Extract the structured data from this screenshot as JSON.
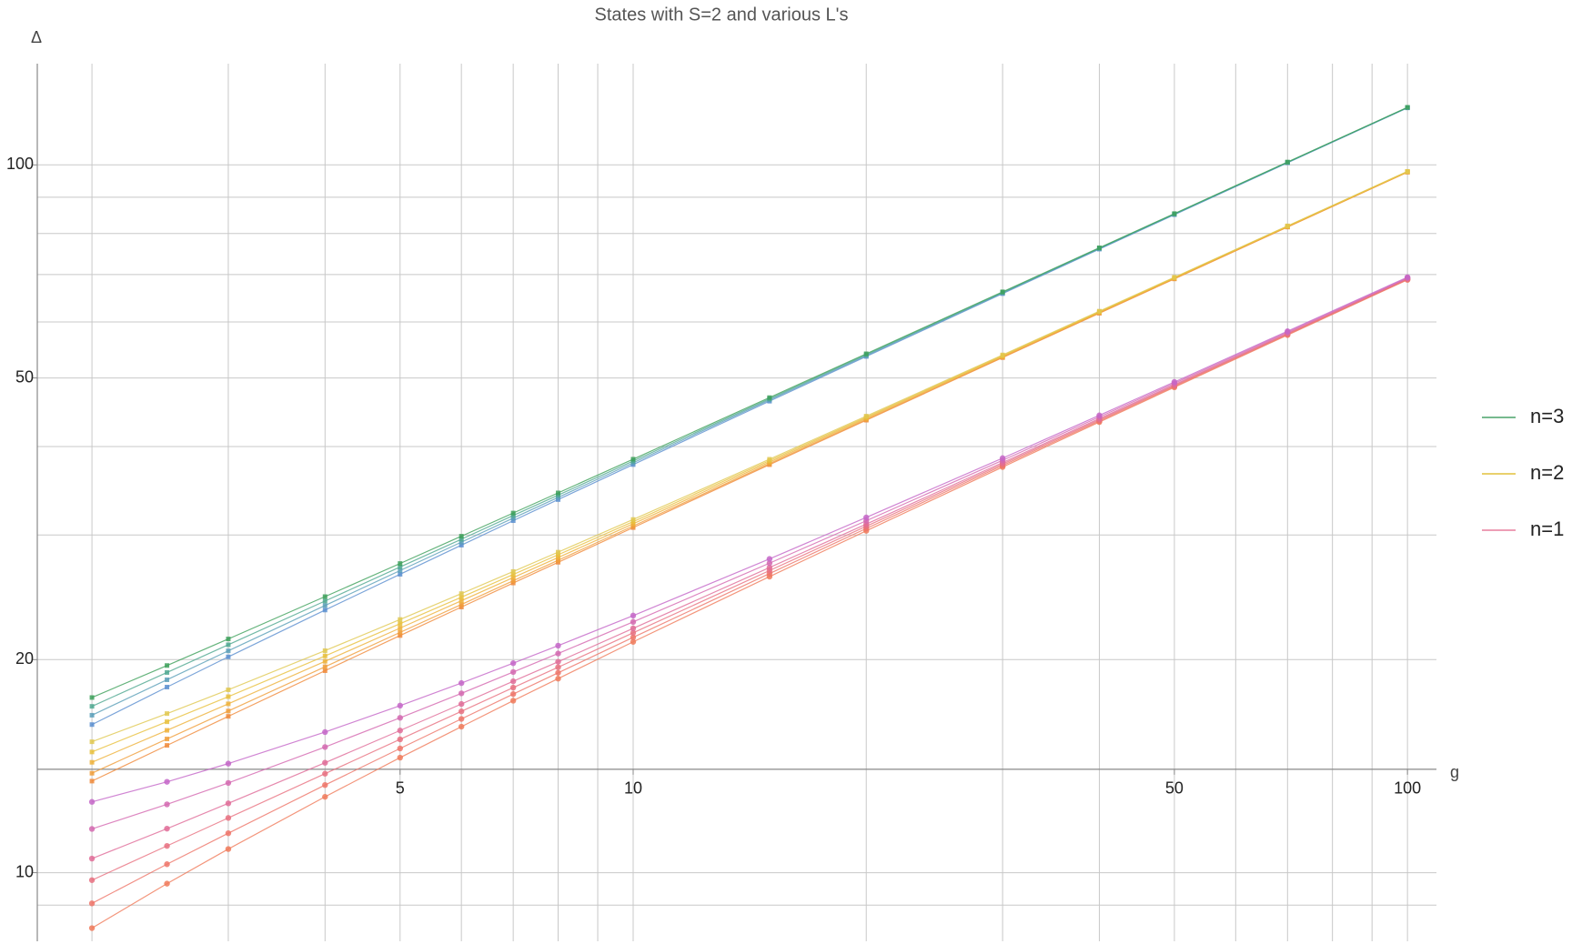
{
  "chart_data": {
    "type": "line",
    "title": "States with S=2 and various L's",
    "x_label": "g",
    "y_label": "Δ",
    "log_x": true,
    "log_y": true,
    "grid": true,
    "legend_position": "right",
    "xlim": [
      1.7,
      109
    ],
    "ylim": [
      8,
      139
    ],
    "x_axis_crosses_at": 14,
    "xticks": [
      5,
      10,
      50,
      100
    ],
    "xgrid": [
      2,
      3,
      4,
      6,
      7,
      8,
      9,
      20,
      30,
      40,
      60,
      70,
      80,
      90
    ],
    "yticks": [
      10,
      20,
      50,
      100
    ],
    "ygrid": [
      9,
      30,
      40,
      60,
      70,
      80,
      90
    ],
    "x": [
      2,
      2.5,
      3,
      4,
      5,
      6,
      7,
      8,
      10,
      15,
      20,
      30,
      40,
      50,
      70,
      100
    ],
    "series": [
      {
        "name": "n=3",
        "color": "#4aa36a",
        "marker": "square",
        "lines": [
          {
            "color": "#5b8fd0",
            "values": [
              16.19,
              18.29,
              20.18,
              23.5,
              26.4,
              29.02,
              31.43,
              33.66,
              37.72,
              46.36,
              53.62,
              65.78,
              76.03,
              85.04,
              100.68,
              120.38
            ]
          },
          {
            "color": "#5a9fb8",
            "values": [
              16.69,
              18.73,
              20.58,
              23.85,
              26.72,
              29.31,
              31.69,
              33.9,
              37.94,
              46.54,
              53.78,
              65.91,
              76.14,
              85.14,
              100.76,
              120.45
            ]
          },
          {
            "color": "#4fa890",
            "values": [
              17.18,
              19.18,
              20.99,
              24.2,
              27.03,
              29.59,
              31.96,
              34.15,
              38.16,
              46.72,
              53.94,
              66.04,
              76.25,
              85.24,
              100.84,
              120.52
            ]
          },
          {
            "color": "#3da05a",
            "values": [
              17.68,
              19.62,
              21.39,
              24.55,
              27.34,
              29.88,
              32.22,
              34.4,
              38.39,
              46.9,
              54.09,
              66.17,
              76.36,
              85.34,
              100.93,
              120.59
            ]
          }
        ]
      },
      {
        "name": "n=2",
        "color": "#e2c13c",
        "marker": "square",
        "lines": [
          {
            "color": "#f08a3a",
            "values": [
              13.47,
              15.13,
              16.63,
              19.29,
              21.63,
              23.73,
              25.66,
              27.45,
              30.73,
              37.71,
              43.58,
              53.42,
              61.72,
              69.01,
              81.69,
              97.65
            ]
          },
          {
            "color": "#f09e3a",
            "values": [
              13.82,
              15.45,
              16.92,
              19.54,
              21.85,
              23.93,
              25.85,
              27.63,
              30.89,
              37.84,
              43.69,
              53.51,
              61.8,
              69.08,
              81.75,
              97.7
            ]
          },
          {
            "color": "#eeb23a",
            "values": [
              14.32,
              15.89,
              17.32,
              19.89,
              22.16,
              24.22,
              26.12,
              27.88,
              31.11,
              38.02,
              43.85,
              53.64,
              61.91,
              69.18,
              81.83,
              97.77
            ]
          },
          {
            "color": "#e8c03c",
            "values": [
              14.81,
              16.34,
              17.73,
              20.24,
              22.48,
              24.5,
              26.38,
              28.13,
              31.33,
              38.2,
              44.0,
              53.77,
              62.02,
              69.28,
              81.92,
              97.84
            ]
          },
          {
            "color": "#e0c850",
            "values": [
              15.31,
              16.78,
              18.13,
              20.59,
              22.79,
              24.79,
              26.64,
              28.37,
              31.55,
              38.38,
              44.16,
              53.89,
              62.13,
              69.38,
              82.0,
              97.91
            ]
          }
        ]
      },
      {
        "name": "n=1",
        "color": "#e77f9e",
        "marker": "circle",
        "lines": [
          {
            "color": "#f07a5a",
            "values": [
              8.35,
              9.65,
              10.8,
              12.8,
              14.54,
              16.08,
              17.5,
              18.8,
              21.19,
              26.2,
              30.41,
              37.42,
              43.32,
              48.51,
              57.49,
              68.8
            ]
          },
          {
            "color": "#ee7468",
            "values": [
              9.05,
              10.28,
              11.37,
              13.3,
              14.98,
              16.49,
              17.88,
              19.16,
              21.5,
              26.46,
              30.64,
              37.61,
              43.48,
              48.65,
              57.61,
              68.9
            ]
          },
          {
            "color": "#e87080",
            "values": [
              9.76,
              10.91,
              11.95,
              13.8,
              15.43,
              16.9,
              18.26,
              19.51,
              21.82,
              26.72,
              30.86,
              37.79,
              43.64,
              48.79,
              57.73,
              69.0
            ]
          },
          {
            "color": "#e06c98",
            "values": [
              10.47,
              11.54,
              12.53,
              14.3,
              15.88,
              17.31,
              18.64,
              19.86,
              22.14,
              26.98,
              31.08,
              37.97,
              43.8,
              48.93,
              57.85,
              69.1
            ]
          },
          {
            "color": "#d468b0",
            "values": [
              11.53,
              12.49,
              13.39,
              15.05,
              16.55,
              17.92,
              19.21,
              20.4,
              22.61,
              27.37,
              31.42,
              38.25,
              44.04,
              49.14,
              58.03,
              69.25
            ]
          },
          {
            "color": "#c466c8",
            "values": [
              12.59,
              13.44,
              14.26,
              15.8,
              17.22,
              18.53,
              19.77,
              20.93,
              23.08,
              27.75,
              31.76,
              38.52,
              44.27,
              49.35,
              58.21,
              69.4
            ]
          }
        ]
      }
    ]
  }
}
